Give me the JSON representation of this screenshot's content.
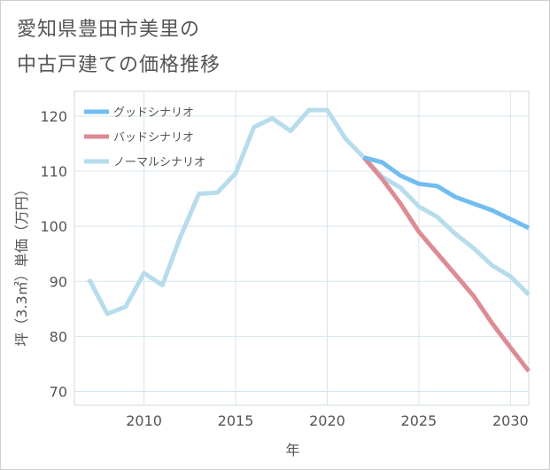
{
  "title_lines": [
    "愛知県豊田市美里の",
    "中古戸建ての価格推移"
  ],
  "chart_data": {
    "type": "line",
    "title": "愛知県豊田市美里の中古戸建ての価格推移",
    "xlabel": "年",
    "ylabel": "坪（3.3㎡）単価（万円）",
    "xlim": [
      2006.2,
      2031
    ],
    "ylim": [
      67.5,
      124.5
    ],
    "xticks": [
      2010,
      2015,
      2020,
      2025,
      2030
    ],
    "yticks": [
      70,
      80,
      90,
      100,
      110,
      120
    ],
    "grid": true,
    "legend_position": "top-left",
    "series": [
      {
        "name": "グッドシナリオ",
        "color": "#72bdf0",
        "x": [
          2022,
          2023,
          2024,
          2025,
          2026,
          2027,
          2028,
          2029,
          2030,
          2031
        ],
        "values": [
          112.5,
          111.6,
          109.2,
          107.7,
          107.3,
          105.3,
          104.1,
          102.9,
          101.3,
          99.7
        ]
      },
      {
        "name": "バッドシナリオ",
        "color": "#dd8b94",
        "x": [
          2022,
          2023,
          2024,
          2025,
          2026,
          2027,
          2028,
          2029,
          2030,
          2031
        ],
        "values": [
          112.5,
          108.6,
          104.1,
          99.0,
          95.1,
          91.2,
          87.3,
          82.4,
          78.0,
          73.7
        ]
      },
      {
        "name": "ノーマルシナリオ",
        "color": "#b7dcec",
        "x": [
          2007,
          2008,
          2009,
          2010,
          2011,
          2012,
          2013,
          2014,
          2015,
          2016,
          2017,
          2018,
          2019,
          2020,
          2021,
          2022,
          2023,
          2024,
          2025,
          2026,
          2027,
          2028,
          2029,
          2030,
          2031
        ],
        "values": [
          90.4,
          84.1,
          85.4,
          91.5,
          89.3,
          98.2,
          105.9,
          106.1,
          109.6,
          118.0,
          119.6,
          117.3,
          121.1,
          121.1,
          115.9,
          112.5,
          109.0,
          107.0,
          103.6,
          101.7,
          98.6,
          96.0,
          92.9,
          90.9,
          87.6
        ]
      }
    ]
  }
}
